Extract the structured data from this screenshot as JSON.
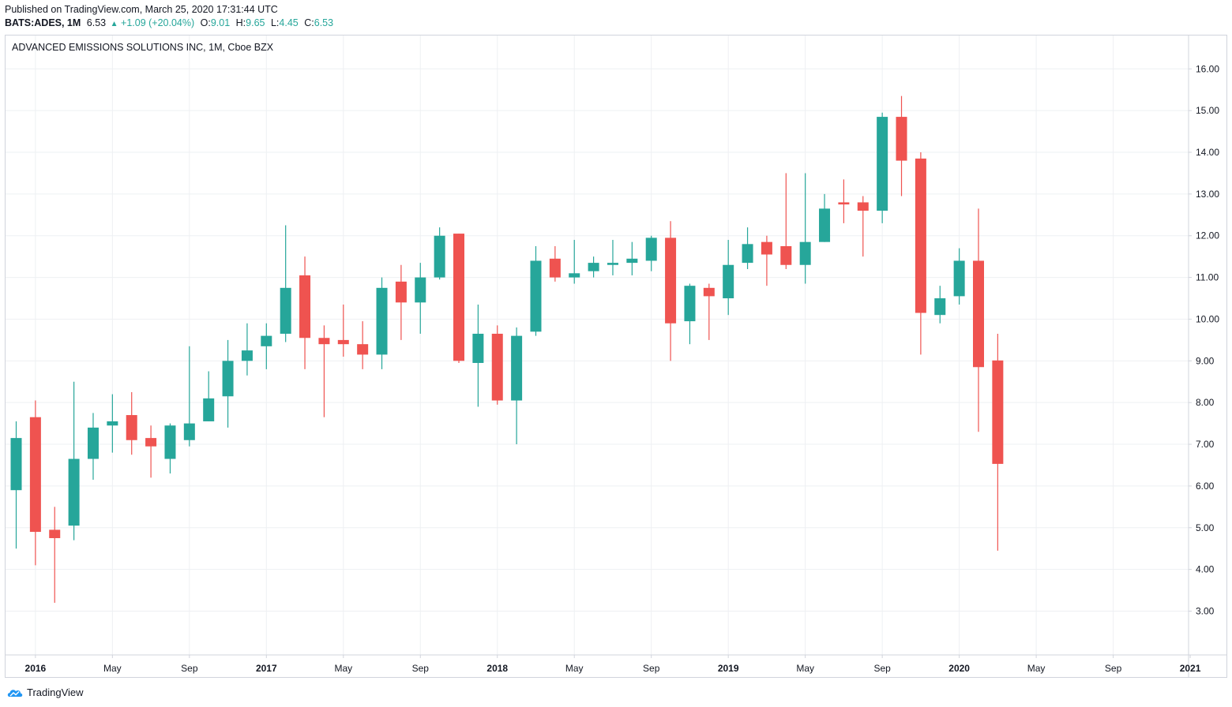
{
  "header": {
    "published": "Published on TradingView.com, March 25, 2020 17:31:44 UTC",
    "symbol": "BATS:ADES, 1M",
    "last": "6.53",
    "change_arrow": "▲",
    "change": "+1.09 (+20.04%)",
    "o_label": "O:",
    "o_value": "9.01",
    "h_label": "H:",
    "h_value": "9.65",
    "l_label": "L:",
    "l_value": "4.45",
    "c_label": "C:",
    "c_value": "6.53"
  },
  "footer": {
    "brand": "TradingView"
  },
  "colors": {
    "up": "#26a69a",
    "down": "#ef5350",
    "grid": "#eef0f3",
    "axis_text": "#131722",
    "border": "#d1d4dc"
  },
  "chart_data": {
    "type": "candlestick",
    "title": "ADVANCED EMISSIONS SOLUTIONS INC, 1M, Cboe BZX",
    "interval": "1M",
    "ylim": [
      1.95,
      16.8
    ],
    "y_ticks": [
      "3.00",
      "4.00",
      "5.00",
      "6.00",
      "7.00",
      "8.00",
      "9.00",
      "10.00",
      "11.00",
      "12.00",
      "13.00",
      "14.00",
      "15.00",
      "16.00"
    ],
    "x_ticks": [
      {
        "label": "2016",
        "index": 1,
        "bold": true
      },
      {
        "label": "May",
        "index": 5,
        "bold": false
      },
      {
        "label": "Sep",
        "index": 9,
        "bold": false
      },
      {
        "label": "2017",
        "index": 13,
        "bold": true
      },
      {
        "label": "May",
        "index": 17,
        "bold": false
      },
      {
        "label": "Sep",
        "index": 21,
        "bold": false
      },
      {
        "label": "2018",
        "index": 25,
        "bold": true
      },
      {
        "label": "May",
        "index": 29,
        "bold": false
      },
      {
        "label": "Sep",
        "index": 33,
        "bold": false
      },
      {
        "label": "2019",
        "index": 37,
        "bold": true
      },
      {
        "label": "May",
        "index": 41,
        "bold": false
      },
      {
        "label": "Sep",
        "index": 45,
        "bold": false
      },
      {
        "label": "2020",
        "index": 49,
        "bold": true
      },
      {
        "label": "May",
        "index": 53,
        "bold": false
      },
      {
        "label": "Sep",
        "index": 57,
        "bold": false
      },
      {
        "label": "2021",
        "index": 61,
        "bold": true
      }
    ],
    "grid": true,
    "candles": [
      {
        "date": "2015-12",
        "o": 5.9,
        "h": 7.55,
        "l": 4.5,
        "c": 7.15
      },
      {
        "date": "2016-01",
        "o": 7.65,
        "h": 8.05,
        "l": 4.1,
        "c": 4.9
      },
      {
        "date": "2016-02",
        "o": 4.95,
        "h": 5.5,
        "l": 3.2,
        "c": 4.75
      },
      {
        "date": "2016-03",
        "o": 5.05,
        "h": 8.5,
        "l": 4.7,
        "c": 6.65
      },
      {
        "date": "2016-04",
        "o": 6.65,
        "h": 7.75,
        "l": 6.15,
        "c": 7.4
      },
      {
        "date": "2016-05",
        "o": 7.45,
        "h": 8.2,
        "l": 6.8,
        "c": 7.55
      },
      {
        "date": "2016-06",
        "o": 7.7,
        "h": 8.25,
        "l": 6.75,
        "c": 7.1
      },
      {
        "date": "2016-07",
        "o": 7.15,
        "h": 7.45,
        "l": 6.2,
        "c": 6.95
      },
      {
        "date": "2016-08",
        "o": 6.65,
        "h": 7.5,
        "l": 6.3,
        "c": 7.45
      },
      {
        "date": "2016-09",
        "o": 7.1,
        "h": 9.35,
        "l": 6.95,
        "c": 7.5
      },
      {
        "date": "2016-10",
        "o": 7.55,
        "h": 8.75,
        "l": 7.55,
        "c": 8.1
      },
      {
        "date": "2016-11",
        "o": 8.15,
        "h": 9.5,
        "l": 7.4,
        "c": 9.0
      },
      {
        "date": "2016-12",
        "o": 9.0,
        "h": 9.9,
        "l": 8.65,
        "c": 9.25
      },
      {
        "date": "2017-01",
        "o": 9.35,
        "h": 9.9,
        "l": 8.8,
        "c": 9.6
      },
      {
        "date": "2017-02",
        "o": 9.65,
        "h": 12.25,
        "l": 9.45,
        "c": 10.75
      },
      {
        "date": "2017-03",
        "o": 11.05,
        "h": 11.5,
        "l": 8.8,
        "c": 9.55
      },
      {
        "date": "2017-04",
        "o": 9.55,
        "h": 9.85,
        "l": 7.65,
        "c": 9.4
      },
      {
        "date": "2017-05",
        "o": 9.5,
        "h": 10.35,
        "l": 9.1,
        "c": 9.4
      },
      {
        "date": "2017-06",
        "o": 9.4,
        "h": 9.95,
        "l": 8.8,
        "c": 9.15
      },
      {
        "date": "2017-07",
        "o": 9.15,
        "h": 11.0,
        "l": 8.8,
        "c": 10.75
      },
      {
        "date": "2017-08",
        "o": 10.9,
        "h": 11.3,
        "l": 9.5,
        "c": 10.4
      },
      {
        "date": "2017-09",
        "o": 10.4,
        "h": 11.35,
        "l": 9.65,
        "c": 11.0
      },
      {
        "date": "2017-10",
        "o": 11.0,
        "h": 12.2,
        "l": 10.95,
        "c": 12.0
      },
      {
        "date": "2017-11",
        "o": 12.05,
        "h": 12.05,
        "l": 8.95,
        "c": 9.0
      },
      {
        "date": "2017-12",
        "o": 8.95,
        "h": 10.35,
        "l": 7.9,
        "c": 9.65
      },
      {
        "date": "2018-01",
        "o": 9.65,
        "h": 9.85,
        "l": 7.95,
        "c": 8.05
      },
      {
        "date": "2018-02",
        "o": 8.05,
        "h": 9.8,
        "l": 7.0,
        "c": 9.6
      },
      {
        "date": "2018-03",
        "o": 9.7,
        "h": 11.75,
        "l": 9.6,
        "c": 11.4
      },
      {
        "date": "2018-04",
        "o": 11.45,
        "h": 11.75,
        "l": 10.9,
        "c": 11.0
      },
      {
        "date": "2018-05",
        "o": 11.0,
        "h": 11.9,
        "l": 10.85,
        "c": 11.1
      },
      {
        "date": "2018-06",
        "o": 11.15,
        "h": 11.5,
        "l": 11.0,
        "c": 11.35
      },
      {
        "date": "2018-07",
        "o": 11.3,
        "h": 11.9,
        "l": 11.05,
        "c": 11.35
      },
      {
        "date": "2018-08",
        "o": 11.35,
        "h": 11.85,
        "l": 11.05,
        "c": 11.45
      },
      {
        "date": "2018-09",
        "o": 11.4,
        "h": 12.0,
        "l": 11.15,
        "c": 11.95
      },
      {
        "date": "2018-10",
        "o": 11.95,
        "h": 12.35,
        "l": 9.0,
        "c": 9.9
      },
      {
        "date": "2018-11",
        "o": 9.95,
        "h": 10.85,
        "l": 9.4,
        "c": 10.8
      },
      {
        "date": "2018-12",
        "o": 10.75,
        "h": 10.85,
        "l": 9.5,
        "c": 10.55
      },
      {
        "date": "2019-01",
        "o": 10.5,
        "h": 11.9,
        "l": 10.1,
        "c": 11.3
      },
      {
        "date": "2019-02",
        "o": 11.35,
        "h": 12.2,
        "l": 11.2,
        "c": 11.8
      },
      {
        "date": "2019-03",
        "o": 11.85,
        "h": 12.0,
        "l": 10.8,
        "c": 11.55
      },
      {
        "date": "2019-04",
        "o": 11.75,
        "h": 13.5,
        "l": 11.2,
        "c": 11.3
      },
      {
        "date": "2019-05",
        "o": 11.3,
        "h": 13.5,
        "l": 10.85,
        "c": 11.85
      },
      {
        "date": "2019-06",
        "o": 11.85,
        "h": 13.0,
        "l": 11.85,
        "c": 12.65
      },
      {
        "date": "2019-07",
        "o": 12.8,
        "h": 13.35,
        "l": 12.3,
        "c": 12.75
      },
      {
        "date": "2019-08",
        "o": 12.8,
        "h": 12.95,
        "l": 11.5,
        "c": 12.6
      },
      {
        "date": "2019-09",
        "o": 12.6,
        "h": 14.95,
        "l": 12.3,
        "c": 14.85
      },
      {
        "date": "2019-10",
        "o": 14.85,
        "h": 15.35,
        "l": 12.95,
        "c": 13.8
      },
      {
        "date": "2019-11",
        "o": 13.85,
        "h": 14.0,
        "l": 9.15,
        "c": 10.15
      },
      {
        "date": "2019-12",
        "o": 10.1,
        "h": 10.8,
        "l": 9.9,
        "c": 10.5
      },
      {
        "date": "2020-01",
        "o": 10.55,
        "h": 11.7,
        "l": 10.35,
        "c": 11.4
      },
      {
        "date": "2020-02",
        "o": 11.4,
        "h": 12.65,
        "l": 7.3,
        "c": 8.85
      },
      {
        "date": "2020-03",
        "o": 9.01,
        "h": 9.65,
        "l": 4.45,
        "c": 6.53
      }
    ]
  }
}
